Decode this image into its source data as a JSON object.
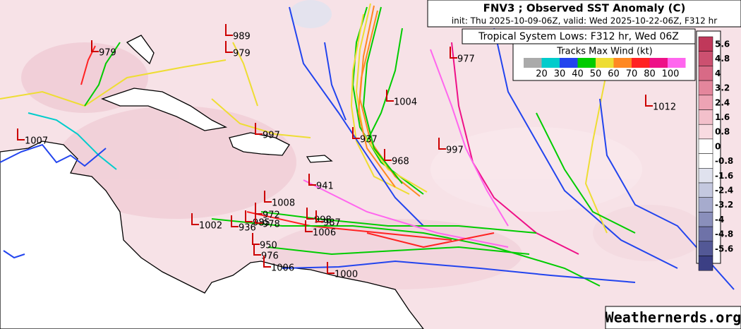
{
  "header": {
    "title": "FNV3 ; Observed SST Anomaly (C)",
    "subtitle": "init: Thu 2025-10-09-06Z, valid: Wed 2025-10-22-06Z, F312 hr"
  },
  "lows_box": {
    "title": "Tropical System Lows: F312 hr, Wed 06Z"
  },
  "wind_legend": {
    "title": "Tracks Max Wind (kt)",
    "labels": [
      "20",
      "30",
      "40",
      "50",
      "60",
      "70",
      "80",
      "100"
    ]
  },
  "colorbar": {
    "labels": [
      "5.6",
      "4.8",
      "4",
      "3.2",
      "2.4",
      "1.6",
      "0.8",
      "0",
      "-0.8",
      "-1.6",
      "-2.4",
      "-3.2",
      "-4",
      "-4.8",
      "-5.6"
    ]
  },
  "lows": [
    "979",
    "989",
    "979",
    "977",
    "1004",
    "1012",
    "1007",
    "997",
    "937",
    "968",
    "997",
    "941",
    "1008",
    "972",
    "1002",
    "936",
    "985",
    "978",
    "998",
    "987",
    "1006",
    "950",
    "976",
    "1006",
    "1000"
  ],
  "watermark": "Weathernerds.org"
}
